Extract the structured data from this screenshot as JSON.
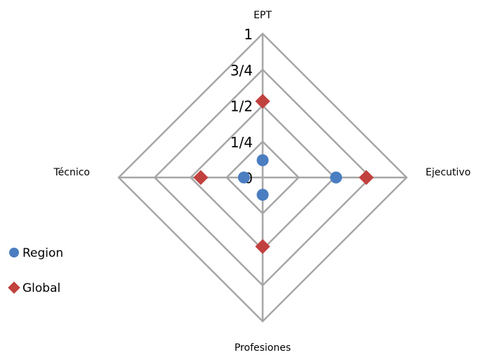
{
  "chart_data": {
    "type": "radar",
    "axes": [
      "EPT",
      "Ejecutivo",
      "Profesiones",
      "Técnico"
    ],
    "scale_labels": [
      "0",
      "1/4",
      "1/2",
      "3/4",
      "1"
    ],
    "range": [
      0,
      1
    ],
    "series": [
      {
        "name": "Region",
        "values": [
          0.12,
          0.51,
          0.12,
          0.13
        ],
        "color": "#4a7ec0",
        "marker": "circle"
      },
      {
        "name": "Global",
        "values": [
          0.53,
          0.72,
          0.48,
          0.43
        ],
        "color": "#c0413e",
        "marker": "diamond"
      }
    ],
    "grid": true,
    "legend": "left"
  }
}
